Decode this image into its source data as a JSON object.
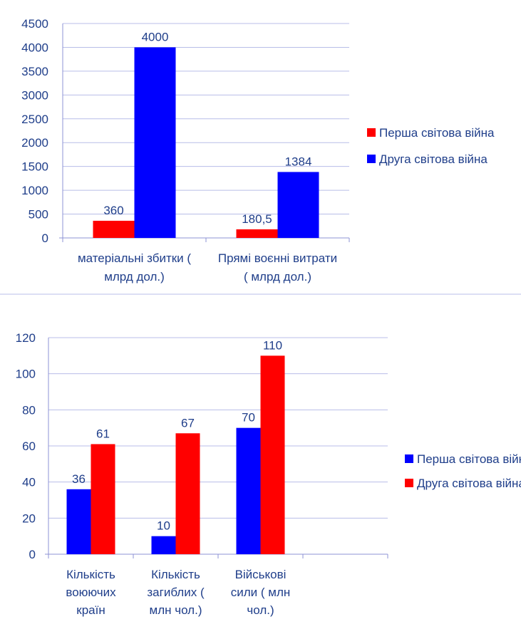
{
  "chart_data": [
    {
      "type": "bar",
      "categories": [
        [
          "матеріальні збитки (",
          "млрд дол.)"
        ],
        [
          "Прямі воєнні витрати",
          "( млрд дол.)"
        ]
      ],
      "series": [
        {
          "name": "Перша світова війна",
          "color": "#ff0000",
          "values": [
            360,
            180.5
          ],
          "labels": [
            "360",
            "180,5"
          ]
        },
        {
          "name": "Друга світова війна",
          "color": "#0000ff",
          "values": [
            4000,
            1384
          ],
          "labels": [
            "4000",
            "1384"
          ]
        }
      ],
      "ylim": [
        0,
        4500
      ],
      "yticks": [
        0,
        500,
        1000,
        1500,
        2000,
        2500,
        3000,
        3500,
        4000,
        4500
      ],
      "grid": true,
      "legend": "right"
    },
    {
      "type": "bar",
      "categories": [
        [
          "Кількість",
          "воюючих",
          "країн"
        ],
        [
          "Кількість",
          "загиблих (",
          "млн чол.)"
        ],
        [
          "Військові",
          "сили ( млн",
          "чол.)"
        ],
        [
          ""
        ]
      ],
      "series": [
        {
          "name": "Перша світова війна",
          "color": "#0000ff",
          "values": [
            36,
            10,
            70,
            null
          ],
          "labels": [
            "36",
            "10",
            "70",
            ""
          ]
        },
        {
          "name": "Друга світова війна",
          "color": "#ff0000",
          "values": [
            61,
            67,
            110,
            null
          ],
          "labels": [
            "61",
            "67",
            "110",
            ""
          ]
        }
      ],
      "ylim": [
        0,
        120
      ],
      "yticks": [
        0,
        20,
        40,
        60,
        80,
        100,
        120
      ],
      "grid": true,
      "legend": "right"
    }
  ]
}
